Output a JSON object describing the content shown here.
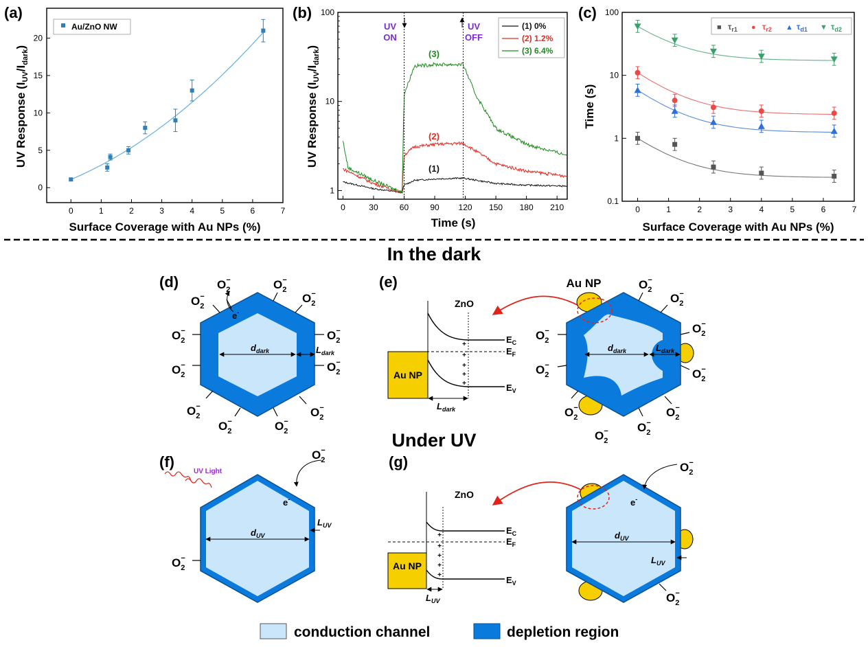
{
  "colors": {
    "channel": "#c9e6fb",
    "depletion": "#0a7bdc",
    "gold": "#f5cf00",
    "chart_blue": "#2f7fb8",
    "fit_blue": "#6fb3e0",
    "black_series": "#111111",
    "red_series": "#e22a22",
    "green_series": "#1c8a1c",
    "tau_r1": "#555555",
    "tau_r2": "#e84a4a",
    "tau_d1": "#2f6fd6",
    "tau_d2": "#3aa06a",
    "purple_text": "#7b2bd6",
    "arrow_red": "#e2231a"
  },
  "headings": {
    "dark": "In the dark",
    "uv": "Under UV"
  },
  "panels": {
    "a": "(a)",
    "b": "(b)",
    "c": "(c)",
    "d": "(d)",
    "e": "(e)",
    "f": "(f)",
    "g": "(g)"
  },
  "chart_a": {
    "ylabel_main": "UV Response (I",
    "ylabel_sub1": "UV",
    "ylabel_mid": "/I",
    "ylabel_sub2": "dark",
    "ylabel_end": ")",
    "xlabel": "Surface Coverage with Au NPs (%)",
    "legend": "Au/ZnO NW"
  },
  "chart_b": {
    "ylabel_main": "UV Response (I",
    "ylabel_sub1": "UV",
    "ylabel_mid": "/I",
    "ylabel_sub2": "dark",
    "ylabel_end": ")",
    "xlabel": "Time (s)",
    "uv_on_1": "UV",
    "uv_on_2": "ON",
    "uv_off_1": "UV",
    "uv_off_2": "OFF",
    "legend": [
      "(1) 0%",
      "(2) 1.2%",
      "(3) 6.4%"
    ],
    "curve_labels": [
      "(1)",
      "(2)",
      "(3)"
    ]
  },
  "chart_c": {
    "ylabel": "Time (s)",
    "xlabel": "Surface Coverage with Au NPs (%)",
    "legend": [
      {
        "sym": "■",
        "base": "τ",
        "sub": "r1"
      },
      {
        "sym": "●",
        "base": "τ",
        "sub": "r2"
      },
      {
        "sym": "▲",
        "base": "τ",
        "sub": "d1"
      },
      {
        "sym": "▼",
        "base": "τ",
        "sub": "d2"
      }
    ]
  },
  "diagram": {
    "o2": "O",
    "o2_sub": "2",
    "o2_sup": "−",
    "electron": "e",
    "electron_sup": "-",
    "d_dark": "d",
    "d_dark_sub": "dark",
    "l_dark": "L",
    "l_dark_sub": "dark",
    "d_uv": "d",
    "d_uv_sub": "UV",
    "l_uv": "L",
    "l_uv_sub": "UV",
    "zno": "ZnO",
    "au_np": "Au NP",
    "ec": "E",
    "ec_sub": "C",
    "ef": "E",
    "ef_sub": "F",
    "ev": "E",
    "ev_sub": "V",
    "plus": "+",
    "uv_light": "UV Light"
  },
  "legend_bottom": {
    "channel": "conduction channel",
    "depletion": "depletion region"
  },
  "chart_data": [
    {
      "type": "scatter",
      "title": "",
      "xlabel": "Surface Coverage with Au NPs (%)",
      "ylabel": "UV Response (IUV/Idark)",
      "xlim": [
        -0.8,
        7
      ],
      "ylim": [
        -2,
        24
      ],
      "xticks": [
        0,
        1,
        2,
        3,
        4,
        5,
        6,
        7
      ],
      "yticks": [
        0,
        5,
        10,
        15,
        20
      ],
      "series": [
        {
          "name": "Au/ZnO NW",
          "x": [
            0,
            1.2,
            1.3,
            1.9,
            2.45,
            3.45,
            4.0,
            6.35
          ],
          "y": [
            1.1,
            2.7,
            4.1,
            5.0,
            8.0,
            9.0,
            13.0,
            21.0
          ],
          "err": [
            0.2,
            0.5,
            0.4,
            0.5,
            0.8,
            1.5,
            1.4,
            1.5
          ]
        }
      ],
      "fit": "quadratic-like growth from 1.1 at 0% to 21 at 6.35%"
    },
    {
      "type": "line",
      "title": "",
      "xlabel": "Time (s)",
      "ylabel": "UV Response (IUV/Idark)",
      "yscale": "log",
      "xlim": [
        -5,
        220
      ],
      "ylim": [
        0.8,
        100
      ],
      "xticks": [
        0,
        30,
        60,
        90,
        120,
        150,
        180,
        210
      ],
      "yticks": [
        1,
        10,
        100
      ],
      "uv_on": 60,
      "uv_off": 118,
      "series": [
        {
          "name": "(1) 0%",
          "x": [
            0,
            30,
            58,
            60,
            70,
            90,
            118,
            150,
            180,
            220
          ],
          "y": [
            1.25,
            1.05,
            0.95,
            1.15,
            1.3,
            1.35,
            1.38,
            1.2,
            1.15,
            1.12
          ]
        },
        {
          "name": "(2) 1.2%",
          "x": [
            0,
            30,
            58,
            60,
            70,
            90,
            118,
            150,
            180,
            220
          ],
          "y": [
            1.75,
            1.2,
            0.95,
            2.5,
            3.1,
            3.3,
            3.4,
            2.0,
            1.65,
            1.45
          ]
        },
        {
          "name": "(3) 6.4%",
          "x": [
            0,
            5,
            30,
            58,
            60,
            70,
            90,
            118,
            130,
            150,
            180,
            220
          ],
          "y": [
            3.6,
            1.8,
            1.3,
            0.95,
            12,
            25,
            26,
            26,
            12,
            5,
            3.3,
            2.5
          ]
        }
      ]
    },
    {
      "type": "scatter",
      "title": "",
      "xlabel": "Surface Coverage with Au NPs (%)",
      "ylabel": "Time (s)",
      "yscale": "log",
      "xlim": [
        -0.5,
        7
      ],
      "ylim": [
        0.1,
        100
      ],
      "xticks": [
        0,
        1,
        2,
        3,
        4,
        5,
        6,
        7
      ],
      "yticks": [
        0.1,
        1,
        10,
        100
      ],
      "x": [
        0,
        1.2,
        2.45,
        4.0,
        6.35
      ],
      "series": [
        {
          "name": "τr1",
          "y": [
            1.0,
            0.8,
            0.35,
            0.28,
            0.25
          ]
        },
        {
          "name": "τr2",
          "y": [
            11.0,
            4.0,
            3.1,
            2.7,
            2.5
          ]
        },
        {
          "name": "τd1",
          "y": [
            5.8,
            2.7,
            1.8,
            1.55,
            1.3
          ]
        },
        {
          "name": "τd2",
          "y": [
            60.0,
            36.0,
            24.0,
            20.0,
            18.0
          ]
        }
      ]
    }
  ]
}
